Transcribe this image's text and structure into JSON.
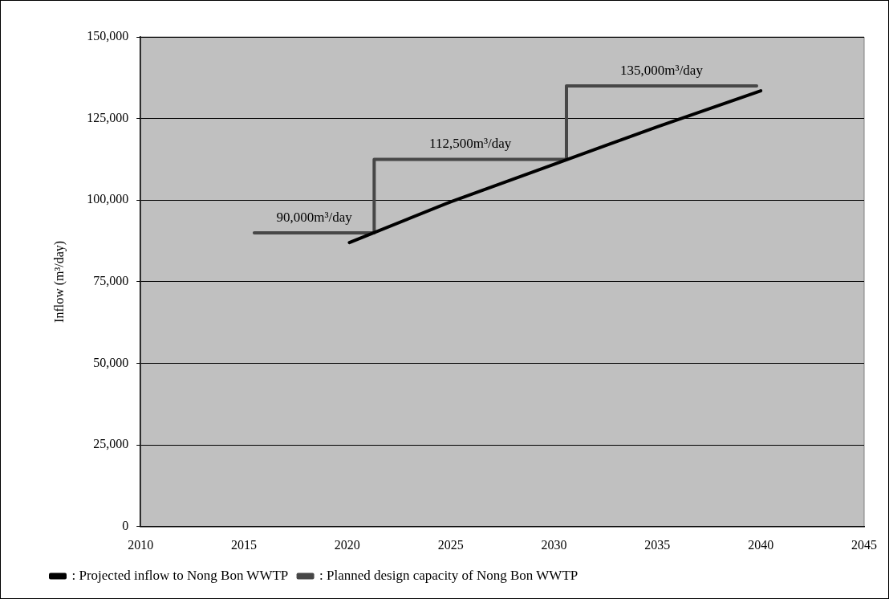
{
  "chart_data": {
    "type": "line",
    "ylabel": "Inflow (m³/day)",
    "xlim": [
      2010,
      2045
    ],
    "xticks": [
      2010,
      2015,
      2020,
      2025,
      2030,
      2035,
      2040,
      2045
    ],
    "ylim": [
      0,
      150000
    ],
    "yticks": [
      {
        "value": 0,
        "label": "0"
      },
      {
        "value": 25000,
        "label": "25,000"
      },
      {
        "value": 50000,
        "label": "50,000"
      },
      {
        "value": 75000,
        "label": "75,000"
      },
      {
        "value": 100000,
        "label": "100,000"
      },
      {
        "value": 125000,
        "label": "125,000"
      },
      {
        "value": 150000,
        "label": "150,000"
      }
    ],
    "grid": "y",
    "legend": "bottom",
    "marker": "none",
    "line_style": "solid",
    "series": [
      {
        "name": ": Projected inflow to Nong Bon WWTP",
        "type": "line",
        "color": "#000000",
        "x": [
          2020.1,
          2025,
          2030,
          2035,
          2040
        ],
        "values": [
          87000,
          99500,
          111000,
          122500,
          133500
        ]
      },
      {
        "name": ": Planned design capacity of Nong Bon WWTP",
        "type": "step",
        "color": "#474747",
        "x": [
          2015.5,
          2021.3,
          2030.6,
          2039.8
        ],
        "values": [
          90000,
          112500,
          135000,
          135000
        ]
      }
    ],
    "annotations": [
      "90,000m³/day",
      "112,500m³/day",
      "135,000m³/day"
    ]
  }
}
